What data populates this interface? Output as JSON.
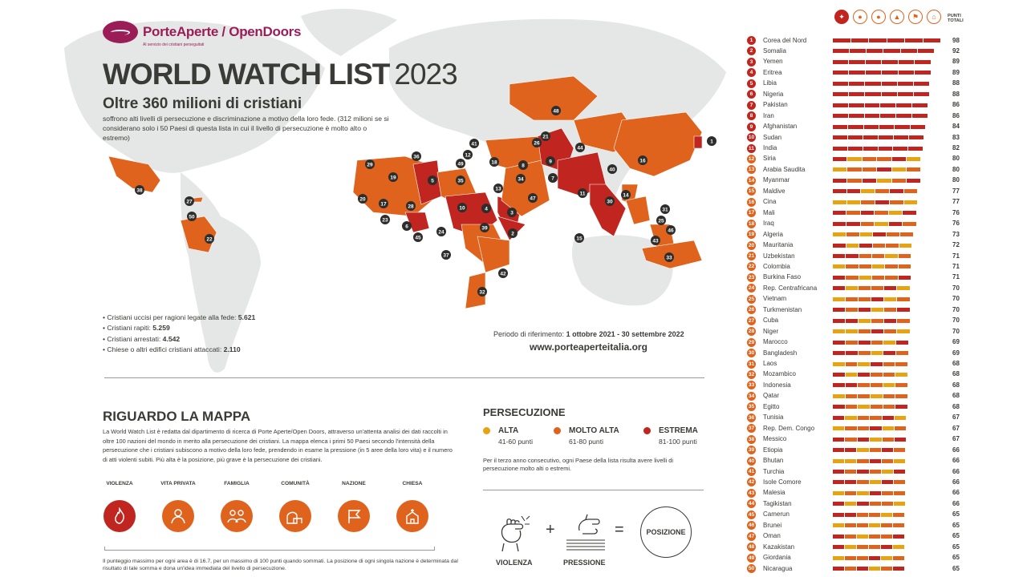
{
  "brand": {
    "name": "PorteAperte / OpenDoors",
    "tagline": "Al servizio dei cristiani perseguitati"
  },
  "title": {
    "main": "WORLD WATCH LIST",
    "year": "2023"
  },
  "subtitle": "Oltre 360 milioni di cristiani",
  "subtitle_desc": "soffrono alti livelli di persecuzione e discriminazione a motivo della loro fede. (312 milioni se si considerano solo i 50 Paesi di questa lista in cui il livello di persecuzione è molto alto o estremo)",
  "stats": [
    {
      "label": "Cristiani uccisi per ragioni legate alla fede:",
      "value": "5.621"
    },
    {
      "label": "Cristiani rapiti:",
      "value": "5.259"
    },
    {
      "label": "Cristiani arrestati:",
      "value": "4.542"
    },
    {
      "label": "Chiese o altri edifici cristiani attaccati:",
      "value": "2.110"
    }
  ],
  "period": {
    "label": "Periodo di riferimento:",
    "value": "1 ottobre 2021 - 30 settembre 2022"
  },
  "url": "www.porteaperteitalia.org",
  "about": {
    "title": "RIGUARDO LA MAPPA",
    "text": "La World Watch List è redatta dal dipartimento di ricerca di Porte Aperte/Open Doors, attraverso un'attenta analisi dei dati raccolti in oltre 100 nazioni del mondo in merito alla persecuzione dei cristiani. La mappa elenca i primi 50 Paesi secondo l'intensità della persecuzione che i cristiani subiscono a motivo della loro fede, prendendo in esame la pressione (in 5 aree della loro vita) e il numero di atti violenti subiti. Più alta è la posizione, più grave è la persecuzione dei cristiani."
  },
  "areas": [
    {
      "label": "VIOLENZA",
      "icon": "violence-icon",
      "color": "#c0251f"
    },
    {
      "label": "VITA PRIVATA",
      "icon": "private-life-icon",
      "color": "#e0631d"
    },
    {
      "label": "FAMIGLIA",
      "icon": "family-icon",
      "color": "#e0631d"
    },
    {
      "label": "COMUNITÀ",
      "icon": "community-icon",
      "color": "#e0631d"
    },
    {
      "label": "NAZIONE",
      "icon": "nation-icon",
      "color": "#e0631d"
    },
    {
      "label": "CHIESA",
      "icon": "church-icon",
      "color": "#e0631d"
    }
  ],
  "footnote": "Il punteggio massimo per ogni area è di 16.7, per un massimo di 100 punti quando sommati. La posizione di ogni singola nazione è determinata dal risultato di tale somma e dona un'idea immediata del livello di persecuzione.",
  "persecution": {
    "title": "PERSECUZIONE",
    "levels": [
      {
        "name": "ALTA",
        "range": "41-60 punti",
        "color": "#e8a313"
      },
      {
        "name": "MOLTO ALTA",
        "range": "61-80 punti",
        "color": "#e0631d"
      },
      {
        "name": "ESTREMA",
        "range": "81-100 punti",
        "color": "#c0251f"
      }
    ],
    "note": "Per il terzo anno consecutivo, ogni Paese della lista risulta avere livelli di persecuzione molto alti o estremi."
  },
  "formula": {
    "a": "VIOLENZA",
    "b": "PRESSIONE",
    "result": "POSIZIONE",
    "plus": "+",
    "equals": "="
  },
  "ranking_header": {
    "points": "PUNTI TOTALI"
  },
  "colors": {
    "extreme": "#c0251f",
    "very_high": "#e0631d",
    "high": "#e8a313",
    "land": "#e4e7e5",
    "ocean": "#ffffff"
  },
  "ranking": [
    {
      "rank": "1",
      "country": "Corea del Nord",
      "points": "98"
    },
    {
      "rank": "2",
      "country": "Somalia",
      "points": "92"
    },
    {
      "rank": "3",
      "country": "Yemen",
      "points": "89"
    },
    {
      "rank": "4",
      "country": "Eritrea",
      "points": "89"
    },
    {
      "rank": "5",
      "country": "Libia",
      "points": "88"
    },
    {
      "rank": "6",
      "country": "Nigeria",
      "points": "88"
    },
    {
      "rank": "7",
      "country": "Pakistan",
      "points": "86"
    },
    {
      "rank": "8",
      "country": "Iran",
      "points": "86"
    },
    {
      "rank": "9",
      "country": "Afghanistan",
      "points": "84"
    },
    {
      "rank": "10",
      "country": "Sudan",
      "points": "83"
    },
    {
      "rank": "11",
      "country": "India",
      "points": "82"
    },
    {
      "rank": "12",
      "country": "Siria",
      "points": "80"
    },
    {
      "rank": "13",
      "country": "Arabia Saudita",
      "points": "80"
    },
    {
      "rank": "14",
      "country": "Myanmar",
      "points": "80"
    },
    {
      "rank": "15",
      "country": "Maldive",
      "points": "77"
    },
    {
      "rank": "16",
      "country": "Cina",
      "points": "77"
    },
    {
      "rank": "17",
      "country": "Mali",
      "points": "76"
    },
    {
      "rank": "18",
      "country": "Iraq",
      "points": "76"
    },
    {
      "rank": "19",
      "country": "Algeria",
      "points": "73"
    },
    {
      "rank": "20",
      "country": "Mauritania",
      "points": "72"
    },
    {
      "rank": "21",
      "country": "Uzbekistan",
      "points": "71"
    },
    {
      "rank": "22",
      "country": "Colombia",
      "points": "71"
    },
    {
      "rank": "23",
      "country": "Burkina Faso",
      "points": "71"
    },
    {
      "rank": "24",
      "country": "Rep. Centrafricana",
      "points": "70"
    },
    {
      "rank": "25",
      "country": "Vietnam",
      "points": "70"
    },
    {
      "rank": "26",
      "country": "Turkmenistan",
      "points": "70"
    },
    {
      "rank": "27",
      "country": "Cuba",
      "points": "70"
    },
    {
      "rank": "28",
      "country": "Niger",
      "points": "70"
    },
    {
      "rank": "29",
      "country": "Marocco",
      "points": "69"
    },
    {
      "rank": "30",
      "country": "Bangladesh",
      "points": "69"
    },
    {
      "rank": "31",
      "country": "Laos",
      "points": "68"
    },
    {
      "rank": "32",
      "country": "Mozambico",
      "points": "68"
    },
    {
      "rank": "33",
      "country": "Indonesia",
      "points": "68"
    },
    {
      "rank": "34",
      "country": "Qatar",
      "points": "68"
    },
    {
      "rank": "35",
      "country": "Egitto",
      "points": "68"
    },
    {
      "rank": "36",
      "country": "Tunisia",
      "points": "67"
    },
    {
      "rank": "37",
      "country": "Rep. Dem. Congo",
      "points": "67"
    },
    {
      "rank": "38",
      "country": "Messico",
      "points": "67"
    },
    {
      "rank": "39",
      "country": "Etiopia",
      "points": "66"
    },
    {
      "rank": "40",
      "country": "Bhutan",
      "points": "66"
    },
    {
      "rank": "41",
      "country": "Turchia",
      "points": "66"
    },
    {
      "rank": "42",
      "country": "Isole Comore",
      "points": "66"
    },
    {
      "rank": "43",
      "country": "Malesia",
      "points": "66"
    },
    {
      "rank": "44",
      "country": "Tagikistan",
      "points": "66"
    },
    {
      "rank": "45",
      "country": "Camerun",
      "points": "65"
    },
    {
      "rank": "46",
      "country": "Brunei",
      "points": "65"
    },
    {
      "rank": "47",
      "country": "Oman",
      "points": "65"
    },
    {
      "rank": "48",
      "country": "Kazakistan",
      "points": "65"
    },
    {
      "rank": "49",
      "country": "Giordania",
      "points": "65"
    },
    {
      "rank": "50",
      "country": "Nicaragua",
      "points": "65"
    }
  ]
}
